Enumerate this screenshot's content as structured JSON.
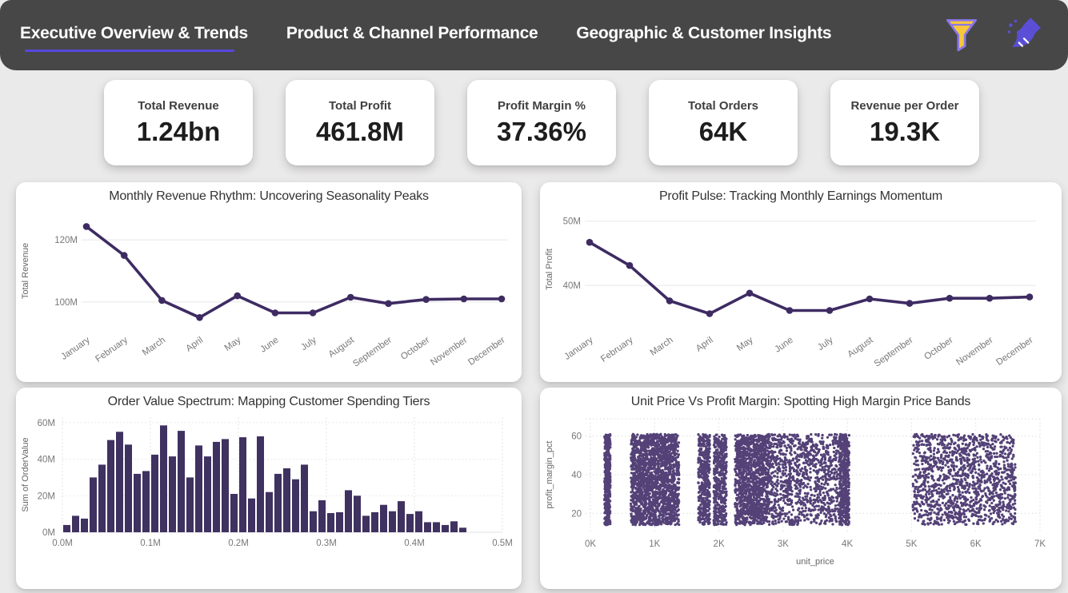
{
  "header": {
    "tabs": [
      {
        "label": "Executive Overview & Trends",
        "active": true
      },
      {
        "label": "Product & Channel Performance",
        "active": false
      },
      {
        "label": "Geographic & Customer Insights",
        "active": false
      }
    ],
    "icons": [
      {
        "name": "filter-funnel-icon"
      },
      {
        "name": "clear-filters-broom-icon"
      }
    ]
  },
  "kpis": [
    {
      "label": "Total Revenue",
      "value": "1.24bn"
    },
    {
      "label": "Total Profit",
      "value": "461.8M"
    },
    {
      "label": "Profit Margin %",
      "value": "37.36%"
    },
    {
      "label": "Total Orders",
      "value": "64K"
    },
    {
      "label": "Revenue per Order",
      "value": "19.3K"
    }
  ],
  "colors": {
    "header_bg": "#474747",
    "tab_text": "#ffffff",
    "active_underline": "#5847e0",
    "page_bg": "#ebeaea",
    "card_bg": "#ffffff",
    "line_purple": "#3e2b62",
    "bar_purple": "#3f3160",
    "scatter_purple": "#44316b",
    "funnel_gold": "#f8c83a",
    "icon_purple": "#5a4fd6",
    "axis_text": "#787878",
    "title_text": "#333333"
  },
  "chart_data": [
    {
      "id": "revenue-line",
      "type": "line",
      "title": "Monthly Revenue Rhythm: Uncovering Seasonality Peaks",
      "ylabel": "Total Revenue",
      "categories": [
        "January",
        "February",
        "March",
        "April",
        "May",
        "June",
        "July",
        "August",
        "September",
        "October",
        "November",
        "December"
      ],
      "values": [
        124.3,
        115.0,
        100.5,
        95.0,
        102.0,
        96.5,
        96.5,
        101.5,
        99.5,
        100.8,
        101.0,
        101.0
      ],
      "unit": "M",
      "yticks": [
        {
          "label": "100M",
          "value": 100
        },
        {
          "label": "120M",
          "value": 120
        }
      ],
      "ylim": [
        92.5,
        127.5
      ],
      "grid": "horizontal-solid-light",
      "legend": "none"
    },
    {
      "id": "profit-line",
      "type": "line",
      "title": "Profit Pulse: Tracking Monthly Earnings Momentum",
      "ylabel": "Total Profit",
      "categories": [
        "January",
        "February",
        "March",
        "April",
        "May",
        "June",
        "July",
        "August",
        "September",
        "October",
        "November",
        "December"
      ],
      "values": [
        46.7,
        43.1,
        37.6,
        35.6,
        38.8,
        36.1,
        36.1,
        37.9,
        37.2,
        38.0,
        38.0,
        38.2
      ],
      "unit": "M",
      "yticks": [
        {
          "label": "40M",
          "value": 40
        },
        {
          "label": "50M",
          "value": 50
        }
      ],
      "ylim": [
        33.8,
        51.2
      ],
      "grid": "horizontal-solid-light",
      "legend": "none"
    },
    {
      "id": "order-value-hist",
      "type": "bar",
      "title": "Order Value Spectrum: Mapping Customer Spending Tiers",
      "ylabel": "Sum of OrderValue",
      "unit": "M",
      "bin_start": 0.0,
      "bin_width": 0.01,
      "values": [
        4,
        9,
        7.5,
        30,
        37,
        50.5,
        55,
        48,
        32,
        33.5,
        42.5,
        58.5,
        41.5,
        55.5,
        30,
        47.5,
        41.5,
        49.5,
        51,
        21,
        52,
        18.5,
        52.5,
        22,
        32,
        35,
        29,
        37,
        11.5,
        17.5,
        10.5,
        11,
        23,
        20,
        9,
        11,
        15,
        11.5,
        17,
        10,
        11.5,
        5.5,
        5.5,
        4,
        6,
        2.5
      ],
      "xticks": [
        {
          "label": "0.0M",
          "value": 0.0
        },
        {
          "label": "0.1M",
          "value": 0.1
        },
        {
          "label": "0.2M",
          "value": 0.2
        },
        {
          "label": "0.3M",
          "value": 0.3
        },
        {
          "label": "0.4M",
          "value": 0.4
        },
        {
          "label": "0.5M",
          "value": 0.5
        }
      ],
      "yticks": [
        {
          "label": "0M",
          "value": 0
        },
        {
          "label": "20M",
          "value": 20
        },
        {
          "label": "40M",
          "value": 40
        },
        {
          "label": "60M",
          "value": 60
        }
      ],
      "xlim": [
        0,
        0.5
      ],
      "ylim": [
        0,
        63
      ],
      "grid": "dotted-both",
      "legend": "none"
    },
    {
      "id": "price-margin-scatter",
      "type": "scatter",
      "title": "Unit Price Vs Profit Margin: Spotting High Margin Price Bands",
      "xlabel": "unit_price",
      "ylabel": "profit_margin_pct",
      "xticks": [
        {
          "label": "0K",
          "value": 0
        },
        {
          "label": "1K",
          "value": 1
        },
        {
          "label": "2K",
          "value": 2
        },
        {
          "label": "3K",
          "value": 3
        },
        {
          "label": "4K",
          "value": 4
        },
        {
          "label": "5K",
          "value": 5
        },
        {
          "label": "6K",
          "value": 6
        },
        {
          "label": "7K",
          "value": 7
        }
      ],
      "yticks": [
        {
          "label": "20",
          "value": 20
        },
        {
          "label": "40",
          "value": 40
        },
        {
          "label": "60",
          "value": 60
        }
      ],
      "xlim": [
        0,
        7
      ],
      "ylim": [
        11,
        69
      ],
      "y_range": [
        14,
        61
      ],
      "bands": [
        {
          "x": [
            0.22,
            0.31
          ],
          "count": 480
        },
        {
          "x": [
            0.63,
            1.38
          ],
          "count": 1900
        },
        {
          "x": [
            1.68,
            1.86
          ],
          "count": 420
        },
        {
          "x": [
            1.92,
            2.12
          ],
          "count": 460
        },
        {
          "x": [
            2.25,
            2.78
          ],
          "count": 1250
        },
        {
          "x": [
            2.78,
            3.9
          ],
          "count": 1000
        },
        {
          "x": [
            3.88,
            4.03
          ],
          "count": 500
        },
        {
          "x": [
            5.02,
            6.62
          ],
          "count": 1350
        }
      ],
      "grid": "dotted-both",
      "legend": "none"
    }
  ]
}
